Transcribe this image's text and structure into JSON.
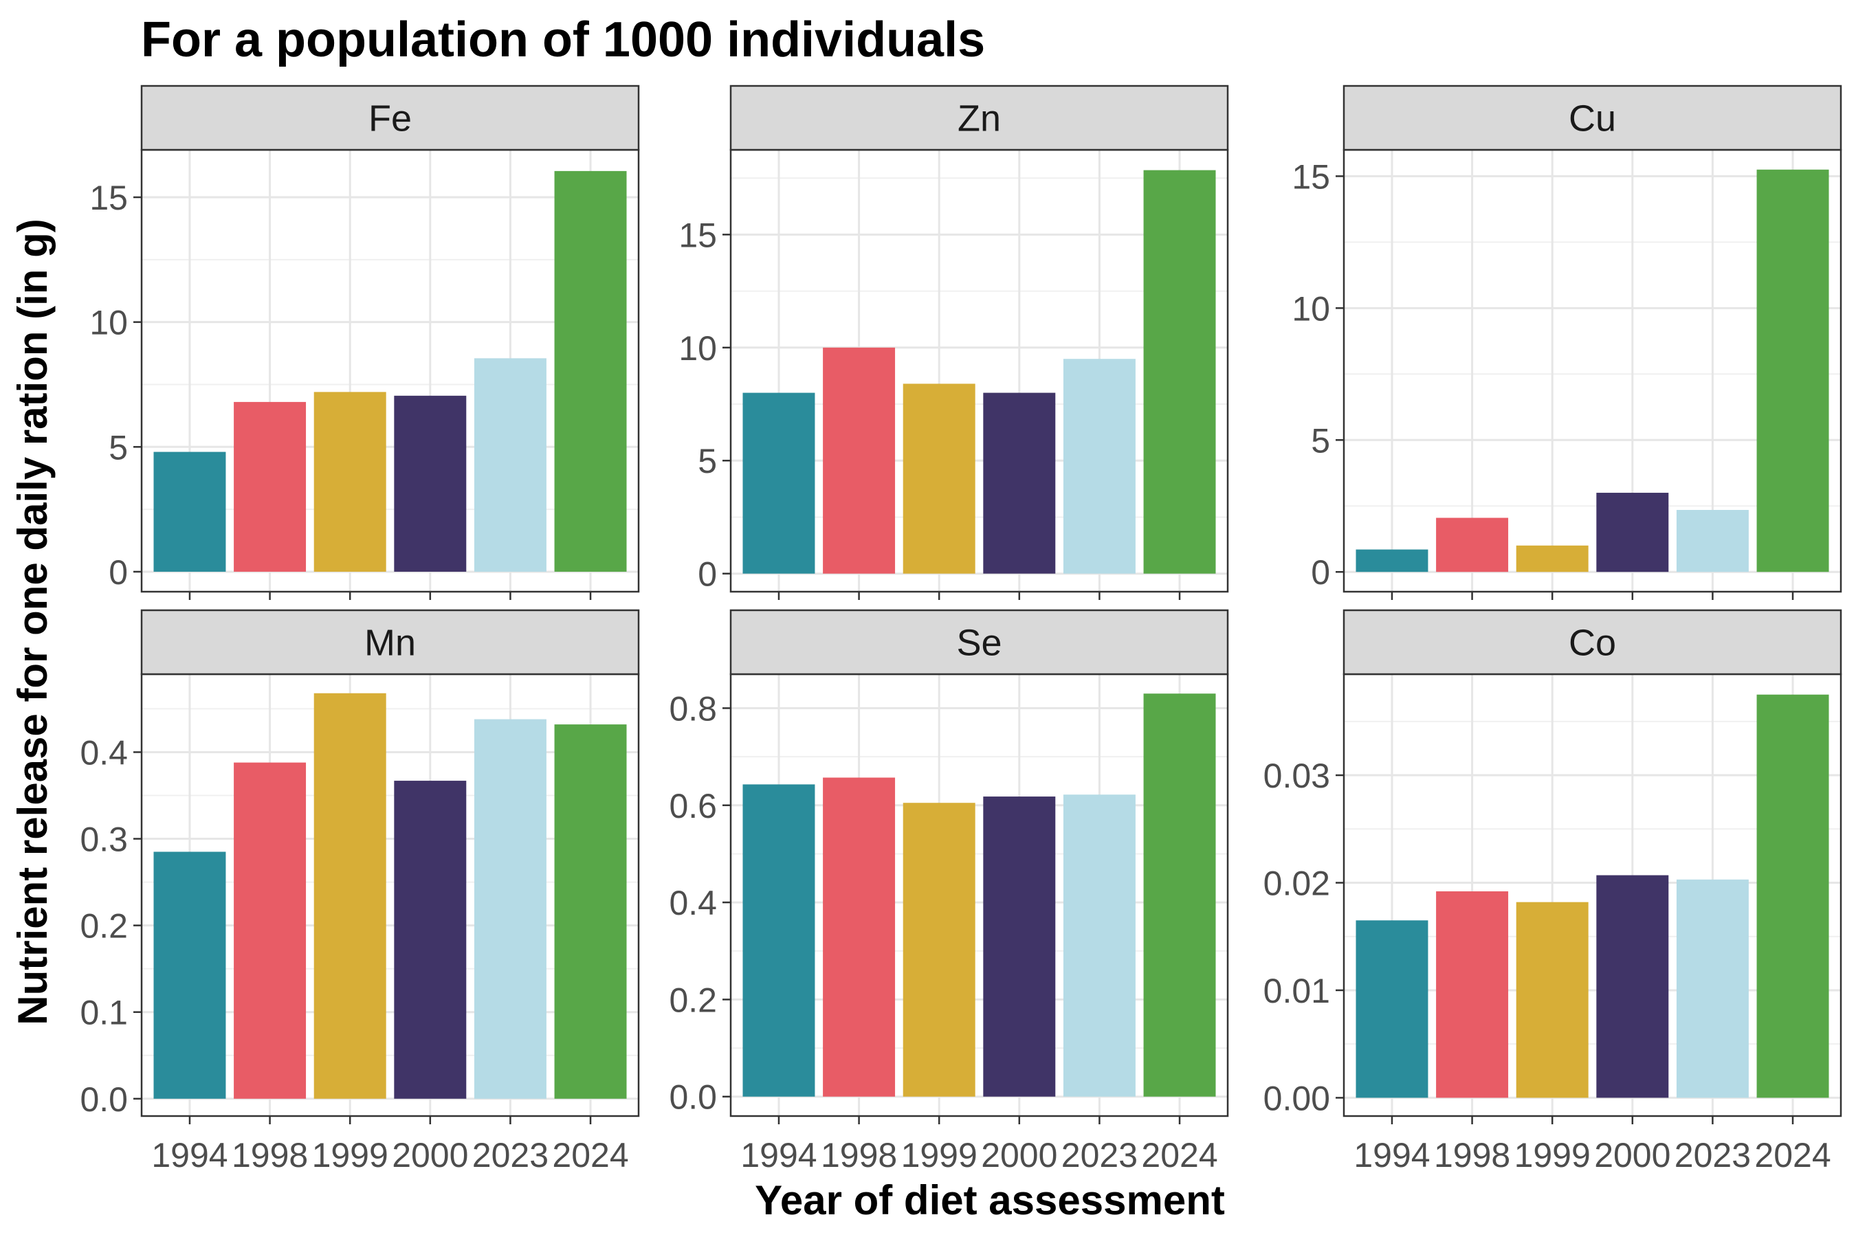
{
  "chart_data": {
    "type": "bar",
    "title": "For a population of 1000 individuals",
    "xlabel": "Year of diet assessment",
    "ylabel": "Nutrient release for one daily ration (in g)",
    "categories": [
      "1994",
      "1998",
      "1999",
      "2000",
      "2023",
      "2024"
    ],
    "colors": [
      "#2A8C9B",
      "#E85C66",
      "#D7AE37",
      "#403467",
      "#B5DBE6",
      "#58A748"
    ],
    "grid": true,
    "legend": "none",
    "panels": [
      {
        "name": "Fe",
        "values": [
          4.8,
          6.8,
          7.2,
          7.05,
          8.55,
          16.05
        ],
        "ylim": [
          -0.8,
          16.9
        ],
        "ticks": [
          0,
          5,
          10,
          15
        ],
        "tick_labels": [
          "0",
          "5",
          "10",
          "15"
        ]
      },
      {
        "name": "Zn",
        "values": [
          8.0,
          10.0,
          8.4,
          8.0,
          9.5,
          17.85
        ],
        "ylim": [
          -0.8,
          18.75
        ],
        "ticks": [
          0,
          5,
          10,
          15
        ],
        "tick_labels": [
          "0",
          "5",
          "10",
          "15"
        ]
      },
      {
        "name": "Cu",
        "values": [
          0.85,
          2.05,
          1.0,
          3.0,
          2.35,
          15.25
        ],
        "ylim": [
          -0.75,
          16.0
        ],
        "ticks": [
          0,
          5,
          10,
          15
        ],
        "tick_labels": [
          "0",
          "5",
          "10",
          "15"
        ]
      },
      {
        "name": "Mn",
        "values": [
          0.285,
          0.388,
          0.468,
          0.367,
          0.438,
          0.432
        ],
        "ylim": [
          -0.02,
          0.49
        ],
        "ticks": [
          0,
          0.1,
          0.2,
          0.3,
          0.4
        ],
        "tick_labels": [
          "0.0",
          "0.1",
          "0.2",
          "0.3",
          "0.4"
        ]
      },
      {
        "name": "Se",
        "values": [
          0.643,
          0.657,
          0.605,
          0.618,
          0.622,
          0.83
        ],
        "ylim": [
          -0.04,
          0.87
        ],
        "ticks": [
          0,
          0.2,
          0.4,
          0.6,
          0.8
        ],
        "tick_labels": [
          "0.0",
          "0.2",
          "0.4",
          "0.6",
          "0.8"
        ]
      },
      {
        "name": "Co",
        "values": [
          0.0165,
          0.0192,
          0.0182,
          0.0207,
          0.0203,
          0.0375
        ],
        "ylim": [
          -0.0017,
          0.0394
        ],
        "ticks": [
          0,
          0.01,
          0.02,
          0.03
        ],
        "tick_labels": [
          "0.00",
          "0.01",
          "0.02",
          "0.03"
        ]
      }
    ]
  }
}
